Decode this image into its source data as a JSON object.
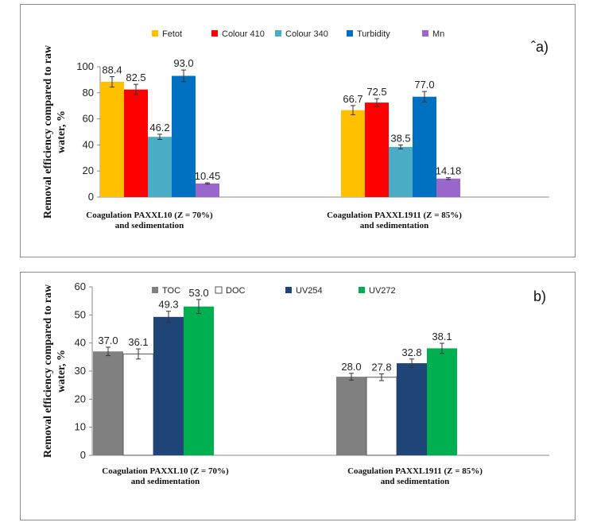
{
  "chart_data": [
    {
      "id": "a",
      "type": "bar",
      "panel_label": "ˆa)",
      "ylabel": "Removal efficiency compared to raw water, %",
      "ylim": [
        0,
        100
      ],
      "yticks": [
        0,
        20,
        40,
        60,
        80,
        100
      ],
      "categories": [
        [
          "Coagulation PAXXL10 (Z = 70%)",
          "and sedimentation"
        ],
        [
          "Coagulation PAXXL1911 (Z = 85%)",
          "and sedimentation"
        ]
      ],
      "series": [
        {
          "name": "Fetot",
          "color": "#FFC000",
          "values": [
            88.4,
            66.7
          ],
          "labels": [
            "88.4",
            "66.7"
          ],
          "errors": [
            4.0,
            3.5
          ]
        },
        {
          "name": "Colour 410",
          "color": "#FF0000",
          "values": [
            82.5,
            72.5
          ],
          "labels": [
            "82.5",
            "72.5"
          ],
          "errors": [
            4.0,
            3.0
          ]
        },
        {
          "name": "Colour 340",
          "color": "#4BACC6",
          "values": [
            46.2,
            38.5
          ],
          "labels": [
            "46.2",
            "38.5"
          ],
          "errors": [
            2.0,
            1.5
          ]
        },
        {
          "name": "Turbidity",
          "color": "#0070C0",
          "values": [
            93.0,
            77.0
          ],
          "labels": [
            "93.0",
            "77.0"
          ],
          "errors": [
            4.5,
            4.0
          ]
        },
        {
          "name": "Mn",
          "color": "#9966CC",
          "values": [
            10.45,
            14.18
          ],
          "labels": [
            "10.45",
            "14.18"
          ],
          "errors": [
            0.5,
            0.7
          ]
        }
      ]
    },
    {
      "id": "b",
      "type": "bar",
      "panel_label": "b)",
      "ylabel": "Removal efficiency  compared to raw water, %",
      "ylim": [
        0,
        60
      ],
      "yticks": [
        0,
        10,
        20,
        30,
        40,
        50,
        60
      ],
      "categories": [
        [
          "Coagulation PAXXL10 (Z = 70%)",
          "and sedimentation"
        ],
        [
          "Coagulation PAXXL1911 (Z = 85%)",
          "and sedimentation"
        ]
      ],
      "series": [
        {
          "name": "TOC",
          "color": "#808080",
          "values": [
            37.0,
            28.0
          ],
          "labels": [
            "37.0",
            "28.0"
          ],
          "errors": [
            1.5,
            1.2
          ]
        },
        {
          "name": "DOC",
          "color": "#FFFFFF",
          "values": [
            36.1,
            27.8
          ],
          "labels": [
            "36.1",
            "27.8"
          ],
          "errors": [
            1.8,
            1.2
          ]
        },
        {
          "name": "UV254",
          "color": "#1F4478",
          "values": [
            49.3,
            32.8
          ],
          "labels": [
            "49.3",
            "32.8"
          ],
          "errors": [
            2.0,
            1.5
          ]
        },
        {
          "name": "UV272",
          "color": "#00B050",
          "values": [
            53.0,
            38.1
          ],
          "labels": [
            "53.0",
            "38.1"
          ],
          "errors": [
            2.5,
            1.8
          ]
        }
      ]
    }
  ]
}
